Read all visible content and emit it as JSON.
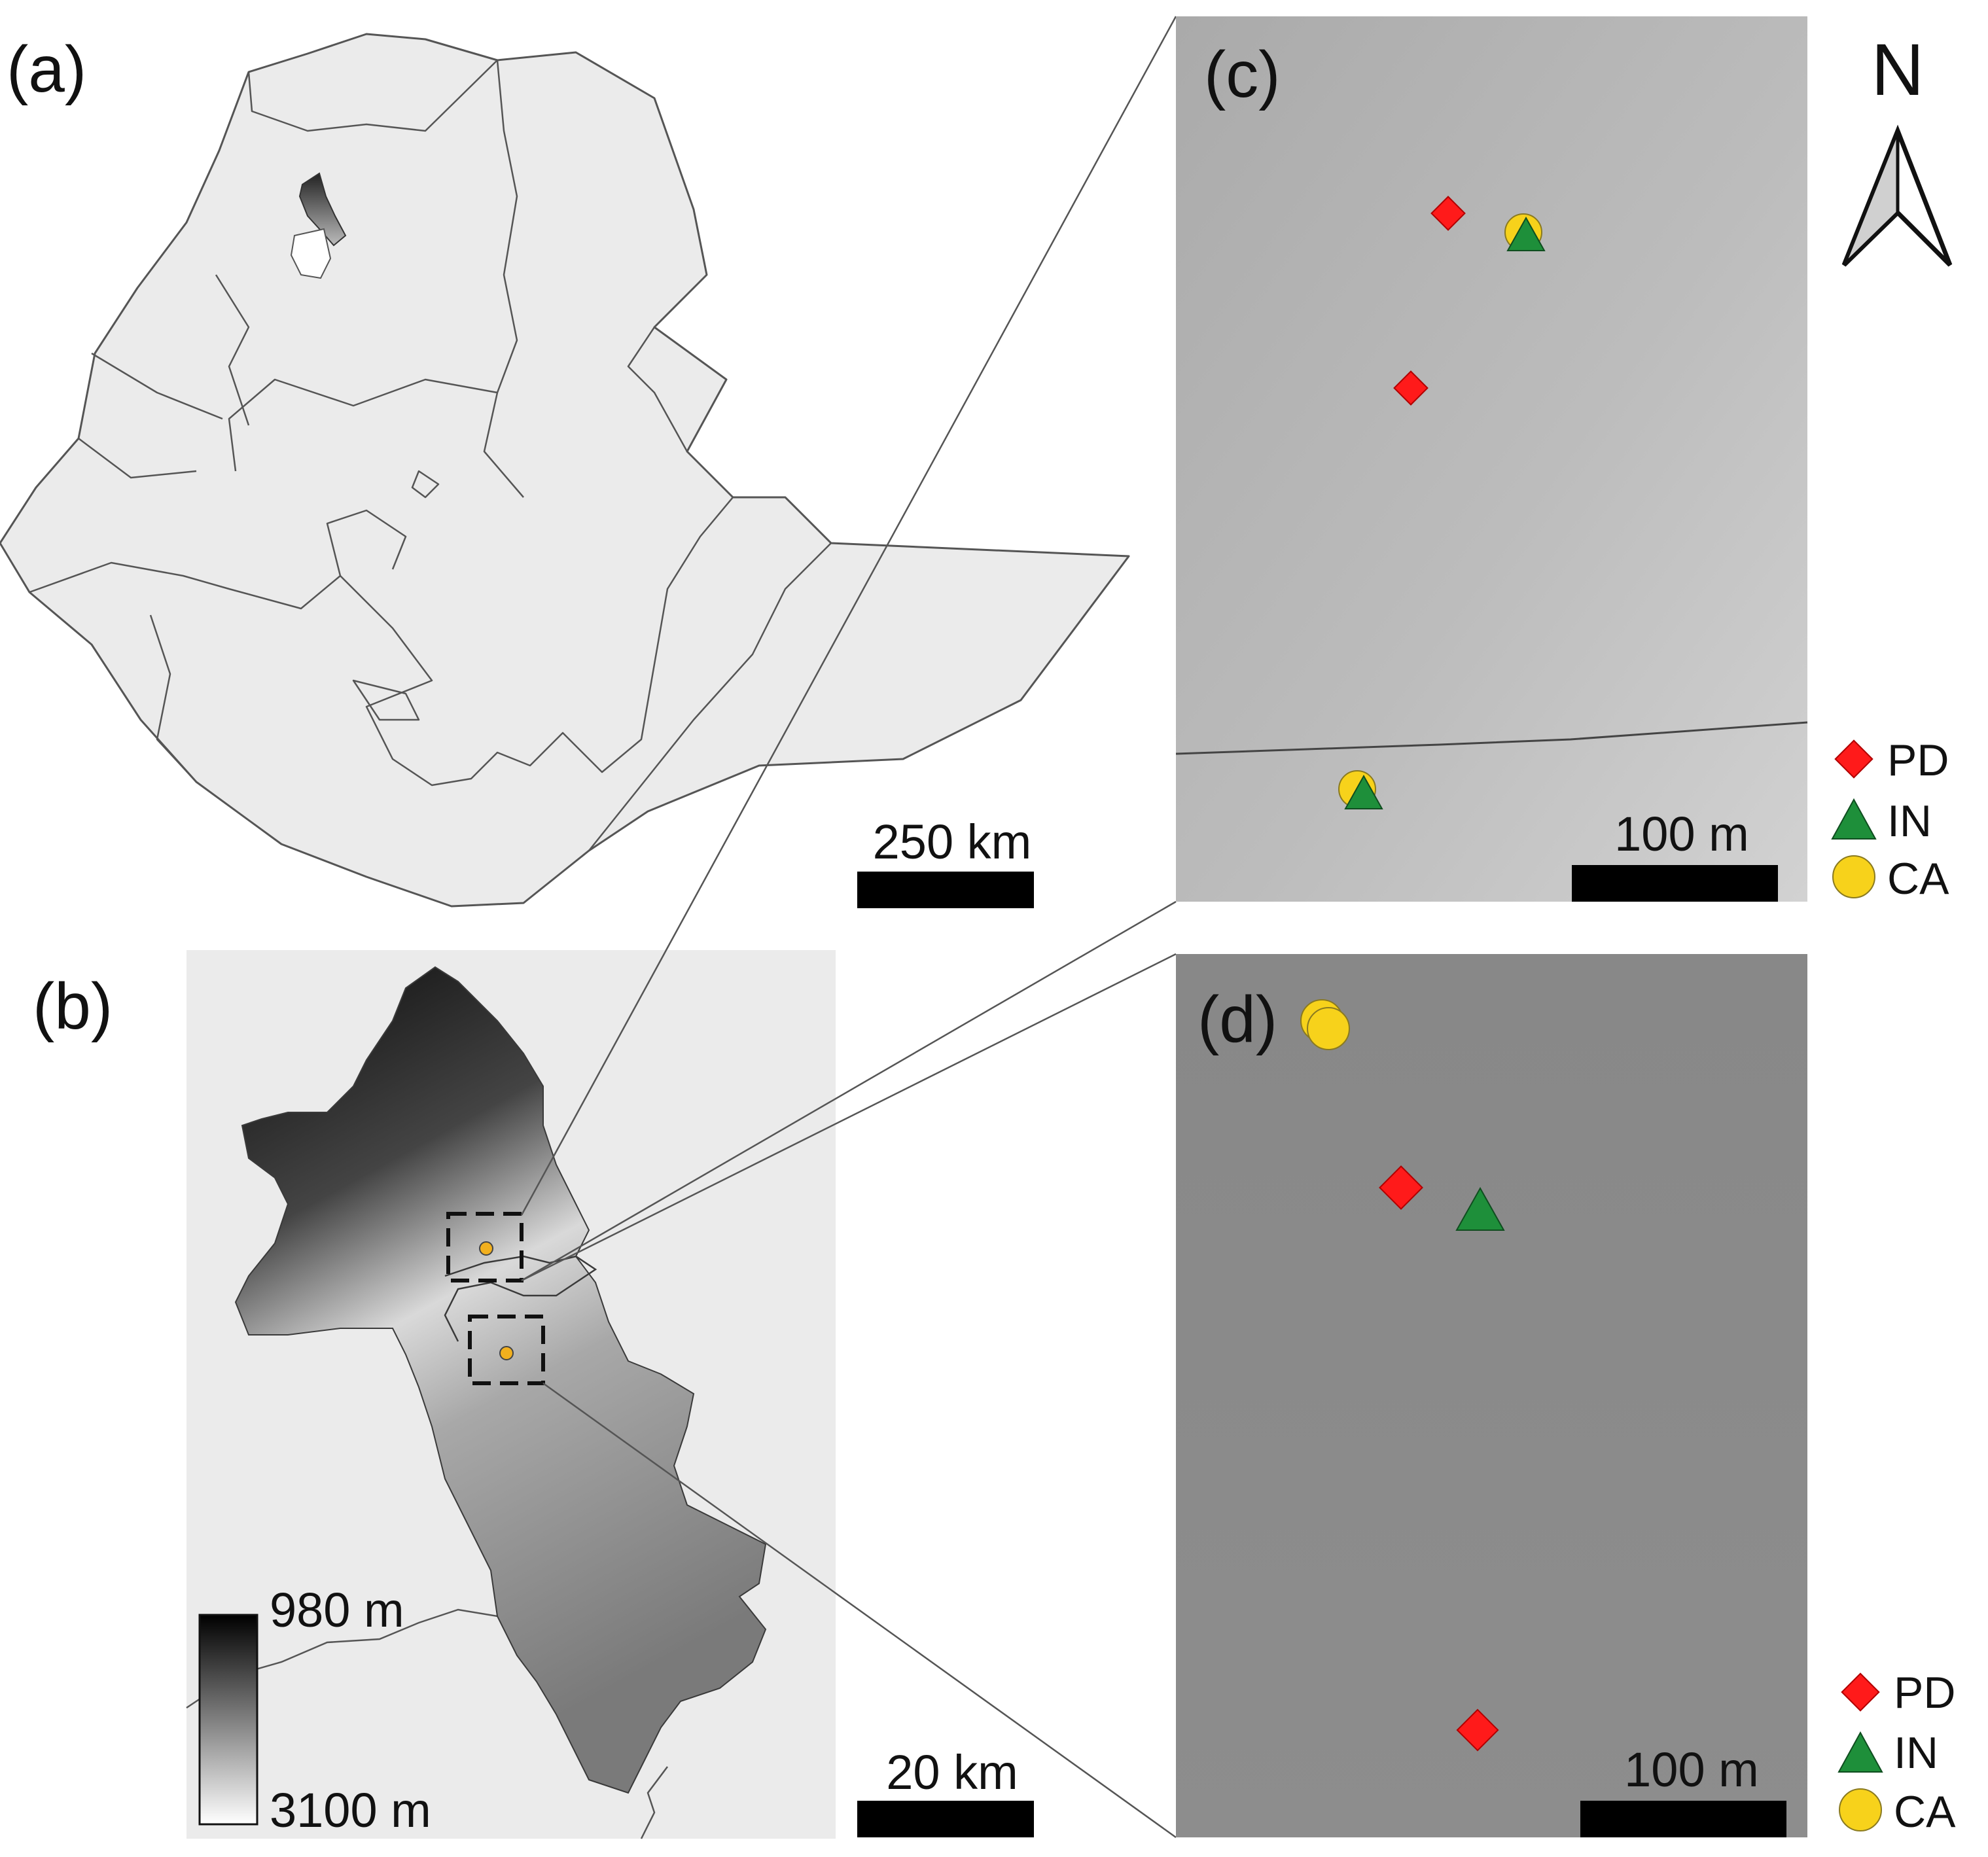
{
  "figure": {
    "panels": {
      "a": {
        "label": "(a)",
        "scalebar": {
          "label": "250 km"
        }
      },
      "b": {
        "label": "(b)",
        "scalebar": {
          "label": "20 km"
        },
        "elevation_legend": {
          "min_label": "980 m",
          "max_label": "3100 m",
          "ramp": [
            "#000000",
            "#ffffff"
          ]
        }
      },
      "c": {
        "label": "(c)",
        "scalebar": {
          "label": "100 m"
        },
        "north_arrow": {
          "label": "N"
        }
      },
      "d": {
        "label": "(d)",
        "scalebar": {
          "label": "100 m"
        }
      }
    },
    "legend": {
      "items": [
        {
          "code": "PD",
          "symbol": "diamond",
          "color": "#ff1a1a"
        },
        {
          "code": "IN",
          "symbol": "triangle",
          "color": "#1e8f3a"
        },
        {
          "code": "CA",
          "symbol": "circle",
          "color": "#f7d21b"
        }
      ]
    },
    "colors": {
      "country_fill": "#ebebeb",
      "border": "#555555",
      "panel_c_bg": "#bdbdbd",
      "panel_d_bg": "#8a8a8a",
      "page_bg": "#ffffff"
    }
  }
}
